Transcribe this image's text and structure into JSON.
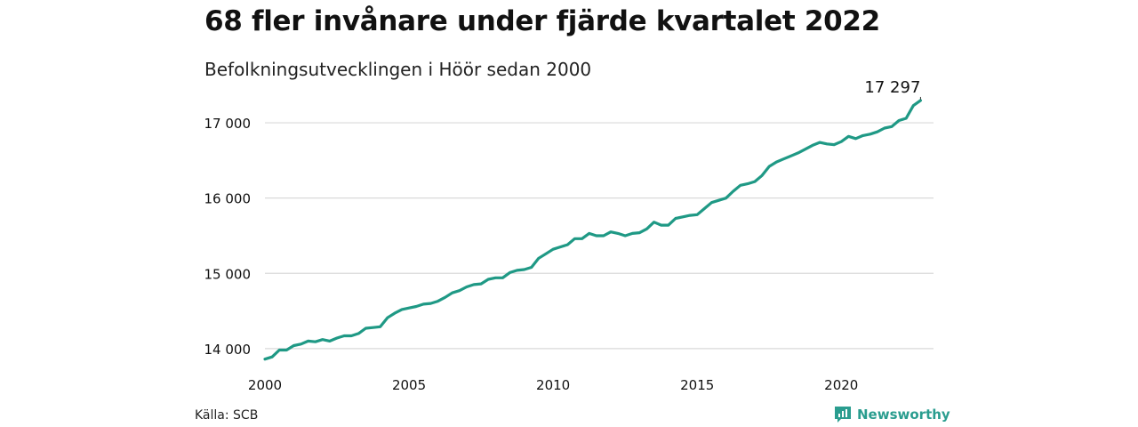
{
  "title": "68 fler invånare under fjärde kvartalet 2022",
  "subtitle": "Befolkningsutvecklingen i Höör sedan 2000",
  "source": "Källa: SCB",
  "brand": "Newsworthy",
  "colors": {
    "line": "#1f9985",
    "grid": "#d9d9d9",
    "brand": "#2a9d8f"
  },
  "chart_data": {
    "type": "line",
    "title": "68 fler invånare under fjärde kvartalet 2022",
    "subtitle": "Befolkningsutvecklingen i Höör sedan 2000",
    "xlabel": "",
    "ylabel": "",
    "xlim": [
      2000,
      2023.2
    ],
    "ylim": [
      13880,
      17450
    ],
    "grid": true,
    "y_ticks": [
      14000,
      15000,
      16000,
      17000
    ],
    "y_tick_labels": [
      "14 000",
      "15 000",
      "16 000",
      "17 000"
    ],
    "x_ticks": [
      2000,
      2005,
      2010,
      2015,
      2020
    ],
    "x_tick_labels": [
      "2000",
      "2005",
      "2010",
      "2015",
      "2020"
    ],
    "last_value_label": "17 297",
    "series": [
      {
        "points": [
          [
            2000.0,
            13860
          ],
          [
            2000.25,
            13890
          ],
          [
            2000.5,
            13980
          ],
          [
            2000.75,
            13980
          ],
          [
            2001.0,
            14040
          ],
          [
            2001.25,
            14060
          ],
          [
            2001.5,
            14100
          ],
          [
            2001.75,
            14090
          ],
          [
            2002.0,
            14120
          ],
          [
            2002.25,
            14100
          ],
          [
            2002.5,
            14140
          ],
          [
            2002.75,
            14170
          ],
          [
            2003.0,
            14170
          ],
          [
            2003.25,
            14200
          ],
          [
            2003.5,
            14270
          ],
          [
            2003.75,
            14280
          ],
          [
            2004.0,
            14290
          ],
          [
            2004.25,
            14410
          ],
          [
            2004.5,
            14470
          ],
          [
            2004.75,
            14520
          ],
          [
            2005.0,
            14540
          ],
          [
            2005.25,
            14560
          ],
          [
            2005.5,
            14590
          ],
          [
            2005.75,
            14600
          ],
          [
            2006.0,
            14630
          ],
          [
            2006.25,
            14680
          ],
          [
            2006.5,
            14740
          ],
          [
            2006.75,
            14770
          ],
          [
            2007.0,
            14820
          ],
          [
            2007.25,
            14850
          ],
          [
            2007.5,
            14860
          ],
          [
            2007.75,
            14920
          ],
          [
            2008.0,
            14940
          ],
          [
            2008.25,
            14940
          ],
          [
            2008.5,
            15010
          ],
          [
            2008.75,
            15040
          ],
          [
            2009.0,
            15050
          ],
          [
            2009.25,
            15080
          ],
          [
            2009.5,
            15200
          ],
          [
            2009.75,
            15260
          ],
          [
            2010.0,
            15320
          ],
          [
            2010.25,
            15350
          ],
          [
            2010.5,
            15380
          ],
          [
            2010.75,
            15460
          ],
          [
            2011.0,
            15460
          ],
          [
            2011.25,
            15530
          ],
          [
            2011.5,
            15500
          ],
          [
            2011.75,
            15500
          ],
          [
            2012.0,
            15550
          ],
          [
            2012.25,
            15530
          ],
          [
            2012.5,
            15500
          ],
          [
            2012.75,
            15530
          ],
          [
            2013.0,
            15540
          ],
          [
            2013.25,
            15590
          ],
          [
            2013.5,
            15680
          ],
          [
            2013.75,
            15640
          ],
          [
            2014.0,
            15640
          ],
          [
            2014.25,
            15730
          ],
          [
            2014.5,
            15750
          ],
          [
            2014.75,
            15770
          ],
          [
            2015.0,
            15780
          ],
          [
            2015.25,
            15860
          ],
          [
            2015.5,
            15940
          ],
          [
            2015.75,
            15970
          ],
          [
            2016.0,
            16000
          ],
          [
            2016.25,
            16090
          ],
          [
            2016.5,
            16170
          ],
          [
            2016.75,
            16190
          ],
          [
            2017.0,
            16220
          ],
          [
            2017.25,
            16300
          ],
          [
            2017.5,
            16420
          ],
          [
            2017.75,
            16480
          ],
          [
            2018.0,
            16520
          ],
          [
            2018.25,
            16560
          ],
          [
            2018.5,
            16600
          ],
          [
            2018.75,
            16650
          ],
          [
            2019.0,
            16700
          ],
          [
            2019.25,
            16740
          ],
          [
            2019.5,
            16720
          ],
          [
            2019.75,
            16710
          ],
          [
            2020.0,
            16750
          ],
          [
            2020.25,
            16820
          ],
          [
            2020.5,
            16790
          ],
          [
            2020.75,
            16830
          ],
          [
            2021.0,
            16850
          ],
          [
            2021.25,
            16880
          ],
          [
            2021.5,
            16930
          ],
          [
            2021.75,
            16950
          ],
          [
            2022.0,
            17030
          ],
          [
            2022.25,
            17060
          ],
          [
            2022.5,
            17229
          ],
          [
            2022.75,
            17297
          ]
        ]
      }
    ]
  }
}
